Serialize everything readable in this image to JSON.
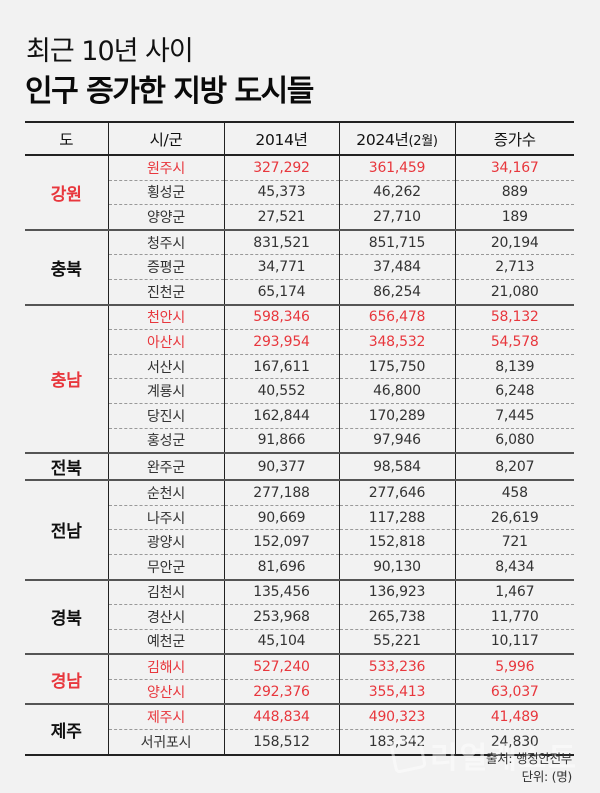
{
  "title": {
    "line1": "최근 10년 사이",
    "line2": "인구 증가한 지방 도시들"
  },
  "colors": {
    "highlight_red": "#e8373d",
    "background": "#f2f2f2",
    "text": "#333333"
  },
  "table": {
    "headers": {
      "province": "도",
      "city": "시/군",
      "y2014": "2014년",
      "y2024": "2024년",
      "y2024_sub": "(2월)",
      "increase": "증가수"
    },
    "groups": [
      {
        "province": "강원",
        "highlight": true,
        "rows": [
          {
            "city": "원주시",
            "y2014": "327,292",
            "y2024": "361,459",
            "increase": "34,167",
            "highlight": true
          },
          {
            "city": "횡성군",
            "y2014": "45,373",
            "y2024": "46,262",
            "increase": "889",
            "highlight": false
          },
          {
            "city": "양양군",
            "y2014": "27,521",
            "y2024": "27,710",
            "increase": "189",
            "highlight": false
          }
        ]
      },
      {
        "province": "충북",
        "highlight": false,
        "rows": [
          {
            "city": "청주시",
            "y2014": "831,521",
            "y2024": "851,715",
            "increase": "20,194",
            "highlight": false
          },
          {
            "city": "증평군",
            "y2014": "34,771",
            "y2024": "37,484",
            "increase": "2,713",
            "highlight": false
          },
          {
            "city": "진천군",
            "y2014": "65,174",
            "y2024": "86,254",
            "increase": "21,080",
            "highlight": false
          }
        ]
      },
      {
        "province": "충남",
        "highlight": true,
        "rows": [
          {
            "city": "천안시",
            "y2014": "598,346",
            "y2024": "656,478",
            "increase": "58,132",
            "highlight": true
          },
          {
            "city": "아산시",
            "y2014": "293,954",
            "y2024": "348,532",
            "increase": "54,578",
            "highlight": true
          },
          {
            "city": "서산시",
            "y2014": "167,611",
            "y2024": "175,750",
            "increase": "8,139",
            "highlight": false
          },
          {
            "city": "계룡시",
            "y2014": "40,552",
            "y2024": "46,800",
            "increase": "6,248",
            "highlight": false
          },
          {
            "city": "당진시",
            "y2014": "162,844",
            "y2024": "170,289",
            "increase": "7,445",
            "highlight": false
          },
          {
            "city": "홍성군",
            "y2014": "91,866",
            "y2024": "97,946",
            "increase": "6,080",
            "highlight": false
          }
        ]
      },
      {
        "province": "전북",
        "highlight": false,
        "rows": [
          {
            "city": "완주군",
            "y2014": "90,377",
            "y2024": "98,584",
            "increase": "8,207",
            "highlight": false
          }
        ]
      },
      {
        "province": "전남",
        "highlight": false,
        "rows": [
          {
            "city": "순천시",
            "y2014": "277,188",
            "y2024": "277,646",
            "increase": "458",
            "highlight": false
          },
          {
            "city": "나주시",
            "y2014": "90,669",
            "y2024": "117,288",
            "increase": "26,619",
            "highlight": false
          },
          {
            "city": "광양시",
            "y2014": "152,097",
            "y2024": "152,818",
            "increase": "721",
            "highlight": false
          },
          {
            "city": "무안군",
            "y2014": "81,696",
            "y2024": "90,130",
            "increase": "8,434",
            "highlight": false
          }
        ]
      },
      {
        "province": "경북",
        "highlight": false,
        "rows": [
          {
            "city": "김천시",
            "y2014": "135,456",
            "y2024": "136,923",
            "increase": "1,467",
            "highlight": false
          },
          {
            "city": "경산시",
            "y2014": "253,968",
            "y2024": "265,738",
            "increase": "11,770",
            "highlight": false
          },
          {
            "city": "예천군",
            "y2014": "45,104",
            "y2024": "55,221",
            "increase": "10,117",
            "highlight": false
          }
        ]
      },
      {
        "province": "경남",
        "highlight": true,
        "rows": [
          {
            "city": "김해시",
            "y2014": "527,240",
            "y2024": "533,236",
            "increase": "5,996",
            "highlight": true
          },
          {
            "city": "양산시",
            "y2014": "292,376",
            "y2024": "355,413",
            "increase": "63,037",
            "highlight": true
          }
        ]
      },
      {
        "province": "제주",
        "highlight": false,
        "rows": [
          {
            "city": "제주시",
            "y2014": "448,834",
            "y2024": "490,323",
            "increase": "41,489",
            "highlight": true
          },
          {
            "city": "서귀포시",
            "y2014": "158,512",
            "y2024": "183,342",
            "increase": "24,830",
            "highlight": false
          }
        ]
      }
    ]
  },
  "footer": {
    "source": "출처: 행정안전부",
    "unit": "단위: (명)"
  },
  "watermark": {
    "text": "리얼캐스트",
    "icon": "realcast-logo-icon"
  }
}
